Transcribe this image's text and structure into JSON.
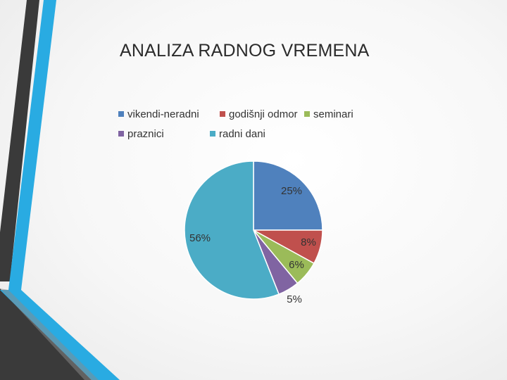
{
  "slide": {
    "title": "ANALIZA RADNOG VREMENA",
    "accent_colors": {
      "dark_stripe": "#3a3a3a",
      "blue_stripe": "#29abe2"
    }
  },
  "chart_data": {
    "type": "pie",
    "title": "",
    "legend_position": "top",
    "start": "12 o'clock",
    "direction": "clockwise",
    "slices": [
      {
        "name": "vikendi-neradni",
        "value": 25,
        "label": "25%",
        "color": "#4f81bd"
      },
      {
        "name": "godišnji odmor",
        "value": 8,
        "label": "8%",
        "color": "#c0504d"
      },
      {
        "name": "seminari",
        "value": 6,
        "label": "6%",
        "color": "#9bbb59"
      },
      {
        "name": "praznici",
        "value": 5,
        "label": "5%",
        "color": "#8064a2"
      },
      {
        "name": "radni dani",
        "value": 56,
        "label": "56%",
        "color": "#4bacc6"
      }
    ]
  }
}
